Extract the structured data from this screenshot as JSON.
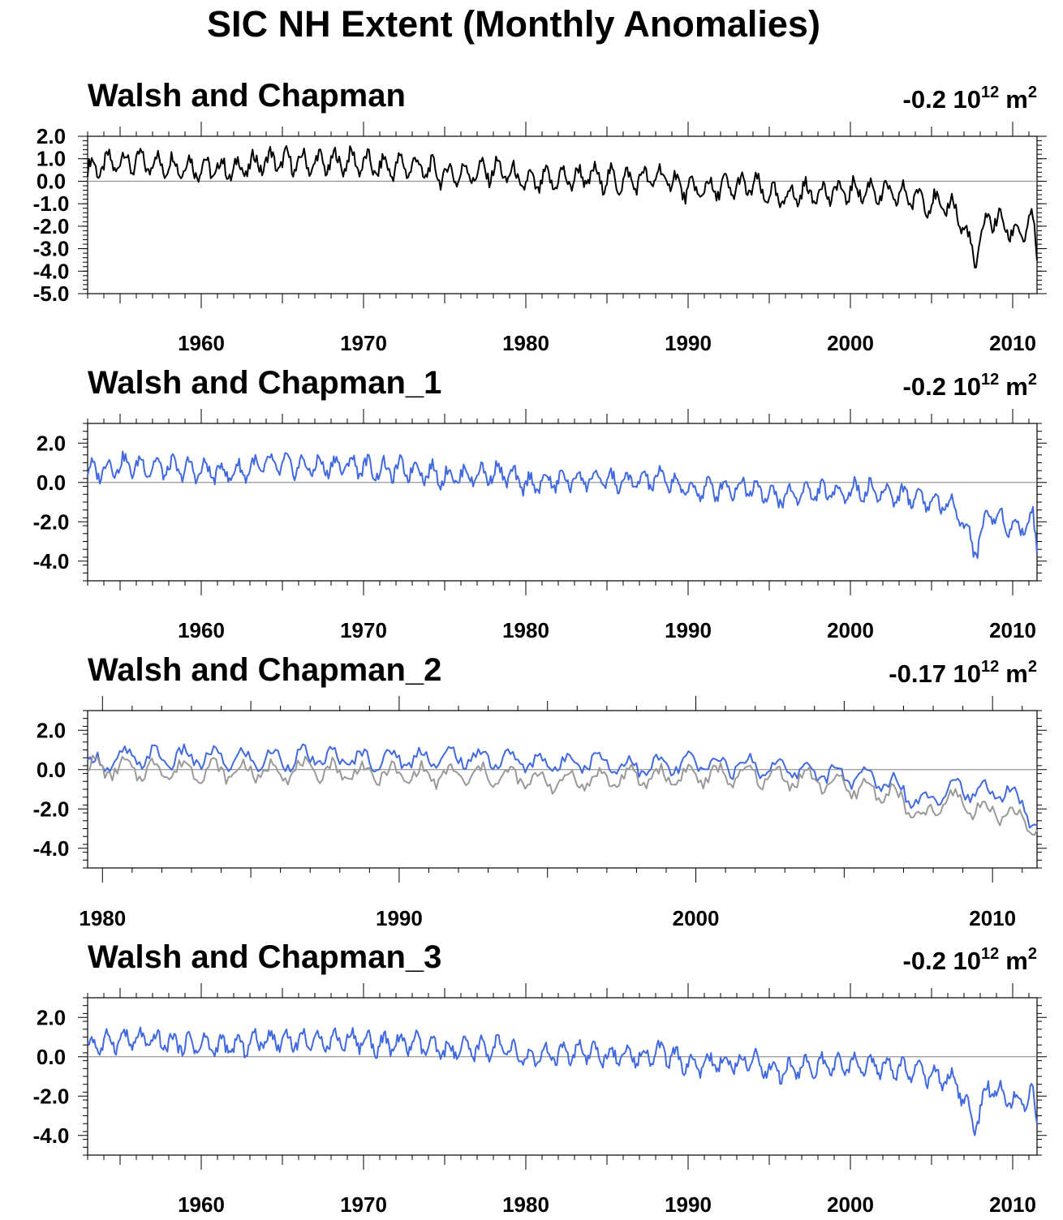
{
  "figure": {
    "title": "SIC NH Extent (Monthly Anomalies)"
  },
  "chart_data": [
    {
      "type": "line",
      "title": "Walsh and Chapman",
      "trend_value": "-0.2",
      "trend_unit_base": "10",
      "trend_unit_exp": "12",
      "trend_unit_m": "m",
      "trend_unit_m_exp": "2",
      "xlim": [
        1953,
        2011.5
      ],
      "ylim": [
        -5.0,
        2.0
      ],
      "xticks": [
        1960,
        1970,
        1980,
        1990,
        2000,
        2010
      ],
      "xtick_labels": [
        "1960",
        "1970",
        "1980",
        "1990",
        "2000",
        "2010"
      ],
      "yticks": [
        2.0,
        1.0,
        0.0,
        -1.0,
        -2.0,
        -3.0,
        -4.0,
        -5.0
      ],
      "ytick_labels": [
        "2.0",
        "1.0",
        "0.0",
        "-1.0",
        "-2.0",
        "-3.0",
        "-4.0",
        "-5.0"
      ],
      "zero_line": true,
      "series": [
        {
          "color": "#000000",
          "x": [
            1953,
            1955,
            1957,
            1960,
            1962,
            1964,
            1967,
            1969.5,
            1971,
            1973,
            1975,
            1977,
            1978.5,
            1980,
            1982,
            1984,
            1986,
            1988.5,
            1990,
            1992,
            1994,
            1995.5,
            1997,
            1999,
            2001,
            2002.5,
            2004,
            2005.5,
            2006.5,
            2007.7,
            2008.5,
            2009.5,
            2010.5,
            2011.2,
            2011.5
          ],
          "y": [
            0.5,
            0.9,
            0.8,
            0.6,
            0.5,
            0.9,
            0.8,
            0.9,
            0.6,
            0.7,
            0.3,
            0.4,
            0.5,
            -0.1,
            0.1,
            0.2,
            0.0,
            0.2,
            -0.4,
            -0.3,
            -0.2,
            -0.8,
            -0.5,
            -0.5,
            -0.4,
            -0.6,
            -0.7,
            -1.1,
            -1.2,
            -3.5,
            -1.5,
            -2.0,
            -2.4,
            -1.6,
            -3.7
          ]
        }
      ]
    },
    {
      "type": "line",
      "title": "Walsh and Chapman_1",
      "trend_value": "-0.2",
      "trend_unit_base": "10",
      "trend_unit_exp": "12",
      "trend_unit_m": "m",
      "trend_unit_m_exp": "2",
      "xlim": [
        1953,
        2011.5
      ],
      "ylim": [
        -5.0,
        3.0
      ],
      "xticks": [
        1960,
        1970,
        1980,
        1990,
        2000,
        2010
      ],
      "xtick_labels": [
        "1960",
        "1970",
        "1980",
        "1990",
        "2000",
        "2010"
      ],
      "yticks": [
        2.0,
        0.0,
        -2.0,
        -4.0
      ],
      "ytick_labels": [
        "2.0",
        "0.0",
        "-2.0",
        "-4.0"
      ],
      "zero_line": true,
      "series": [
        {
          "color": "#4169e1",
          "x": [
            1953,
            1955,
            1957,
            1960,
            1962,
            1964,
            1967,
            1969.5,
            1971,
            1973,
            1975,
            1977,
            1978.5,
            1980,
            1982,
            1984,
            1986,
            1988.5,
            1990,
            1992,
            1994,
            1995.5,
            1997,
            1999,
            2001,
            2002.5,
            2004,
            2005.5,
            2006.5,
            2007.7,
            2008.5,
            2009.5,
            2010.5,
            2011.2,
            2011.5
          ],
          "y": [
            0.5,
            0.9,
            0.8,
            0.6,
            0.5,
            0.9,
            0.8,
            0.9,
            0.6,
            0.7,
            0.3,
            0.4,
            0.5,
            -0.1,
            0.1,
            0.2,
            0.0,
            0.2,
            -0.4,
            -0.3,
            -0.2,
            -0.8,
            -0.5,
            -0.5,
            -0.4,
            -0.6,
            -0.7,
            -1.1,
            -1.2,
            -3.5,
            -1.5,
            -2.0,
            -2.4,
            -1.6,
            -3.7
          ]
        }
      ]
    },
    {
      "type": "line",
      "title": "Walsh and Chapman_2",
      "trend_value": "-0.17",
      "trend_unit_base": "10",
      "trend_unit_exp": "12",
      "trend_unit_m": "m",
      "trend_unit_m_exp": "2",
      "xlim": [
        1979.5,
        2011.5
      ],
      "ylim": [
        -5.0,
        3.0
      ],
      "xticks": [
        1980,
        1990,
        2000,
        2010
      ],
      "xtick_labels": [
        "1980",
        "1990",
        "2000",
        "2010"
      ],
      "yticks": [
        2.0,
        0.0,
        -2.0,
        -4.0
      ],
      "ytick_labels": [
        "2.0",
        "0.0",
        "-2.0",
        "-4.0"
      ],
      "zero_line": true,
      "series": [
        {
          "color": "#4169e1",
          "x": [
            1979.5,
            1981,
            1983,
            1985,
            1987,
            1989,
            1991,
            1993,
            1995,
            1996.5,
            1998,
            2000,
            2002,
            2004,
            2005.5,
            2006.5,
            2007.7,
            2008.5,
            2009.5,
            2010.5,
            2011.5
          ],
          "y": [
            0.2,
            0.6,
            0.6,
            0.5,
            0.6,
            0.5,
            0.6,
            0.6,
            0.3,
            0.5,
            0.1,
            0.3,
            0.2,
            -0.1,
            -0.4,
            -0.6,
            -1.7,
            -0.8,
            -1.2,
            -1.1,
            -2.6
          ]
        },
        {
          "color": "#999999",
          "x": [
            1979.5,
            1981,
            1983,
            1985,
            1987,
            1989,
            1991,
            1993,
            1995,
            1996.5,
            1998,
            2000,
            2002,
            2004,
            2005.5,
            2006.5,
            2007.7,
            2008.5,
            2009.5,
            2010.5,
            2011.5
          ],
          "y": [
            0.1,
            0.0,
            0.0,
            -0.1,
            0.0,
            -0.2,
            -0.3,
            -0.3,
            -0.6,
            -0.5,
            -0.4,
            -0.3,
            -0.3,
            -0.5,
            -1.0,
            -1.1,
            -2.6,
            -1.4,
            -2.0,
            -2.2,
            -3.0
          ]
        }
      ]
    },
    {
      "type": "line",
      "title": "Walsh and Chapman_3",
      "trend_value": "-0.2",
      "trend_unit_base": "10",
      "trend_unit_exp": "12",
      "trend_unit_m": "m",
      "trend_unit_m_exp": "2",
      "xlim": [
        1953,
        2011.5
      ],
      "ylim": [
        -5.0,
        3.0
      ],
      "xticks": [
        1960,
        1970,
        1980,
        1990,
        2000,
        2010
      ],
      "xtick_labels": [
        "1960",
        "1970",
        "1980",
        "1990",
        "2000",
        "2010"
      ],
      "yticks": [
        2.0,
        0.0,
        -2.0,
        -4.0
      ],
      "ytick_labels": [
        "2.0",
        "0.0",
        "-2.0",
        "-4.0"
      ],
      "zero_line": true,
      "series": [
        {
          "color": "#4169e1",
          "x": [
            1953,
            1955,
            1957,
            1960,
            1962,
            1964,
            1967,
            1969.5,
            1971,
            1973,
            1975,
            1977,
            1978.5,
            1980,
            1982,
            1984,
            1986,
            1988.5,
            1990,
            1992,
            1994,
            1995.5,
            1997,
            1999,
            2001,
            2002.5,
            2004,
            2005.5,
            2006.5,
            2007.7,
            2008.5,
            2009.5,
            2010.5,
            2011.2,
            2011.5
          ],
          "y": [
            0.5,
            0.9,
            0.8,
            0.6,
            0.5,
            0.9,
            0.8,
            0.9,
            0.6,
            0.7,
            0.3,
            0.4,
            0.5,
            -0.1,
            0.1,
            0.2,
            0.0,
            0.2,
            -0.4,
            -0.3,
            -0.2,
            -0.8,
            -0.5,
            -0.5,
            -0.4,
            -0.6,
            -0.7,
            -1.1,
            -1.2,
            -3.5,
            -1.5,
            -2.0,
            -2.4,
            -1.6,
            -3.7
          ]
        }
      ]
    }
  ]
}
